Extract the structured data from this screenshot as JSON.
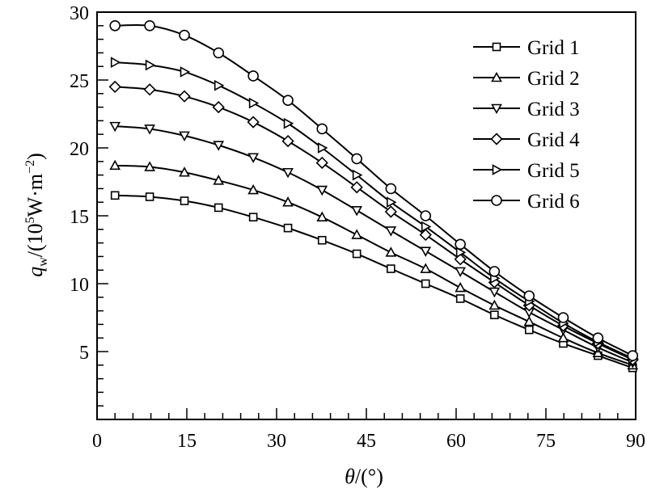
{
  "chart_data": {
    "type": "line",
    "title": "",
    "xlabel": "θ/(°)",
    "ylabel_parts": {
      "q": "q",
      "sub": "w",
      "mid": "/(10",
      "sup1": "5",
      "unit": "W·m",
      "sup2": "−2",
      "end": ")"
    },
    "xlim": [
      0,
      90
    ],
    "ylim": [
      0,
      30
    ],
    "xticks": [
      0,
      15,
      30,
      45,
      60,
      75,
      90
    ],
    "yticks": [
      5,
      10,
      15,
      20,
      25,
      30
    ],
    "ytick_labels_extra_zero": "0",
    "grid": false,
    "legend_placement": "top-right",
    "x": [
      3.0,
      8.8,
      14.6,
      20.3,
      26.1,
      31.9,
      37.6,
      43.4,
      49.1,
      54.9,
      60.7,
      66.4,
      72.2,
      77.9,
      83.7,
      89.5
    ],
    "series": [
      {
        "name": "Grid 1",
        "marker": "square",
        "values": [
          16.5,
          16.4,
          16.1,
          15.6,
          14.9,
          14.1,
          13.2,
          12.2,
          11.1,
          10.0,
          8.9,
          7.7,
          6.6,
          5.6,
          4.7,
          3.8
        ]
      },
      {
        "name": "Grid 2",
        "marker": "triangle-up",
        "values": [
          18.7,
          18.6,
          18.2,
          17.6,
          16.9,
          16.0,
          14.9,
          13.6,
          12.3,
          11.1,
          9.7,
          8.4,
          7.2,
          6.0,
          4.9,
          4.0
        ]
      },
      {
        "name": "Grid 3",
        "marker": "triangle-down",
        "values": [
          21.6,
          21.4,
          20.9,
          20.2,
          19.3,
          18.2,
          16.9,
          15.4,
          13.9,
          12.4,
          10.9,
          9.4,
          7.9,
          6.6,
          5.3,
          4.2
        ]
      },
      {
        "name": "Grid 4",
        "marker": "diamond",
        "values": [
          24.5,
          24.3,
          23.8,
          23.0,
          21.9,
          20.5,
          18.9,
          17.1,
          15.3,
          13.6,
          11.8,
          10.1,
          8.4,
          6.9,
          5.6,
          4.4
        ]
      },
      {
        "name": "Grid 5",
        "marker": "triangle-right",
        "values": [
          26.3,
          26.1,
          25.6,
          24.6,
          23.3,
          21.8,
          20.0,
          18.0,
          16.0,
          14.2,
          12.3,
          10.4,
          8.7,
          7.1,
          5.7,
          4.5
        ]
      },
      {
        "name": "Grid 6",
        "marker": "circle",
        "values": [
          29.0,
          29.0,
          28.3,
          27.0,
          25.3,
          23.5,
          21.4,
          19.2,
          17.0,
          15.0,
          12.9,
          10.9,
          9.1,
          7.5,
          6.0,
          4.7
        ]
      }
    ]
  }
}
